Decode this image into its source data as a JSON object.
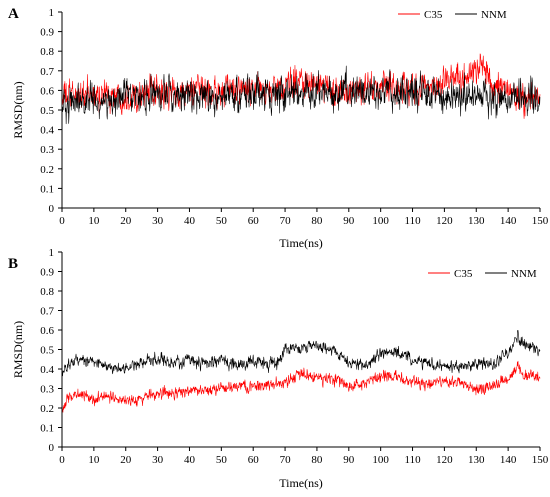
{
  "colors": {
    "c35": "#ff0000",
    "nnm": "#000000",
    "axis": "#000000"
  },
  "chart_data": [
    {
      "type": "line",
      "panel_label": "A",
      "xlabel": "Time(ns)",
      "ylabel": "RMSD(nm)",
      "xlim": [
        0,
        150
      ],
      "ylim": [
        0,
        1
      ],
      "xticks": [
        "0",
        "10",
        "20",
        "30",
        "40",
        "50",
        "60",
        "70",
        "80",
        "90",
        "100",
        "110",
        "120",
        "130",
        "140",
        "150"
      ],
      "yticks": [
        "0",
        "0.1",
        "0.2",
        "0.3",
        "0.4",
        "0.5",
        "0.6",
        "0.7",
        "0.8",
        "0.9",
        "1"
      ],
      "grid": false,
      "legend_position": "top-right",
      "series": [
        {
          "name": "C35",
          "color": "#ff0000",
          "x": [
            0,
            5,
            10,
            15,
            20,
            25,
            30,
            35,
            40,
            45,
            50,
            55,
            60,
            65,
            70,
            75,
            80,
            85,
            90,
            95,
            100,
            105,
            110,
            115,
            120,
            125,
            130,
            132,
            135,
            140,
            145,
            150
          ],
          "y": [
            0.57,
            0.58,
            0.57,
            0.58,
            0.57,
            0.59,
            0.58,
            0.59,
            0.59,
            0.6,
            0.59,
            0.6,
            0.6,
            0.6,
            0.61,
            0.66,
            0.62,
            0.6,
            0.61,
            0.6,
            0.62,
            0.61,
            0.61,
            0.62,
            0.65,
            0.67,
            0.69,
            0.74,
            0.63,
            0.59,
            0.56,
            0.55
          ]
        },
        {
          "name": "NNM",
          "color": "#000000",
          "x": [
            0,
            5,
            10,
            15,
            20,
            25,
            30,
            35,
            40,
            45,
            50,
            55,
            60,
            65,
            70,
            75,
            80,
            85,
            90,
            95,
            100,
            105,
            110,
            115,
            120,
            125,
            130,
            135,
            140,
            145,
            150
          ],
          "y": [
            0.52,
            0.55,
            0.54,
            0.55,
            0.56,
            0.57,
            0.58,
            0.58,
            0.57,
            0.58,
            0.57,
            0.58,
            0.58,
            0.59,
            0.6,
            0.59,
            0.6,
            0.59,
            0.6,
            0.59,
            0.6,
            0.59,
            0.6,
            0.59,
            0.58,
            0.57,
            0.57,
            0.56,
            0.56,
            0.57,
            0.58
          ]
        }
      ]
    },
    {
      "type": "line",
      "panel_label": "B",
      "xlabel": "Time(ns)",
      "ylabel": "RMSD(nm)",
      "xlim": [
        0,
        150
      ],
      "ylim": [
        0,
        1
      ],
      "xticks": [
        "0",
        "10",
        "20",
        "30",
        "40",
        "50",
        "60",
        "70",
        "80",
        "90",
        "100",
        "110",
        "120",
        "130",
        "140",
        "150"
      ],
      "yticks": [
        "0",
        "0.1",
        "0.2",
        "0.3",
        "0.4",
        "0.5",
        "0.6",
        "0.7",
        "0.8",
        "0.9",
        "1"
      ],
      "grid": false,
      "legend_position": "top-right",
      "series": [
        {
          "name": "C35",
          "color": "#ff0000",
          "x": [
            0,
            2,
            5,
            10,
            15,
            20,
            25,
            30,
            35,
            40,
            45,
            50,
            55,
            60,
            65,
            70,
            75,
            80,
            85,
            90,
            95,
            100,
            105,
            110,
            115,
            120,
            125,
            130,
            135,
            140,
            143,
            145,
            150
          ],
          "y": [
            0.19,
            0.26,
            0.27,
            0.25,
            0.26,
            0.24,
            0.25,
            0.28,
            0.27,
            0.29,
            0.29,
            0.3,
            0.31,
            0.31,
            0.32,
            0.33,
            0.37,
            0.36,
            0.35,
            0.31,
            0.33,
            0.37,
            0.36,
            0.33,
            0.32,
            0.34,
            0.33,
            0.3,
            0.31,
            0.35,
            0.41,
            0.37,
            0.35
          ]
        },
        {
          "name": "NNM",
          "color": "#000000",
          "x": [
            0,
            2,
            5,
            10,
            15,
            20,
            25,
            30,
            35,
            40,
            45,
            50,
            55,
            60,
            65,
            68,
            70,
            75,
            80,
            85,
            90,
            95,
            100,
            105,
            110,
            115,
            120,
            125,
            130,
            135,
            140,
            143,
            145,
            150
          ],
          "y": [
            0.38,
            0.42,
            0.45,
            0.44,
            0.41,
            0.41,
            0.43,
            0.46,
            0.43,
            0.45,
            0.43,
            0.45,
            0.42,
            0.44,
            0.42,
            0.44,
            0.51,
            0.5,
            0.52,
            0.5,
            0.43,
            0.42,
            0.48,
            0.49,
            0.45,
            0.43,
            0.41,
            0.42,
            0.43,
            0.42,
            0.48,
            0.57,
            0.53,
            0.49
          ]
        }
      ]
    }
  ]
}
